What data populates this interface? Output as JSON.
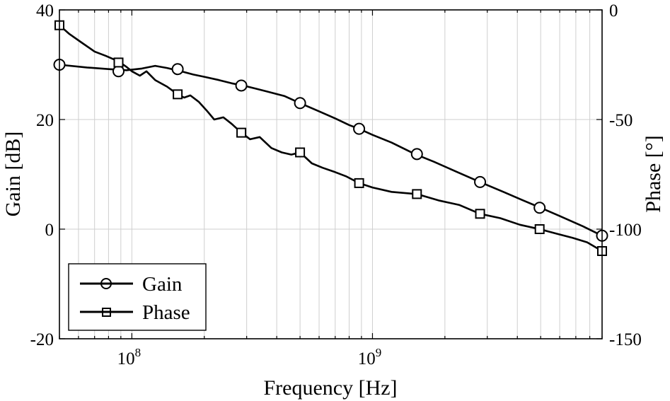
{
  "chart_data": {
    "type": "line",
    "title": "",
    "xlabel": "Frequency [Hz]",
    "ylabel_left": "Gain [dB]",
    "ylabel_right": "Phase [°]",
    "xscale": "log",
    "xlim": [
      50000000,
      9000000000
    ],
    "ylim_left": [
      -20,
      40
    ],
    "ylim_right": [
      -150,
      0
    ],
    "x_ticks": [
      {
        "value": 100000000,
        "base": "10",
        "exp": "8"
      },
      {
        "value": 1000000000,
        "base": "10",
        "exp": "9"
      }
    ],
    "y_ticks_left": [
      "-20",
      "0",
      "20",
      "40"
    ],
    "y_tick_values_left": [
      -20,
      0,
      20,
      40
    ],
    "y_ticks_right": [
      "-150",
      "-100",
      "-50",
      "0"
    ],
    "y_tick_values_right": [
      -150,
      -100,
      -50,
      0
    ],
    "grid": true,
    "legend_position": "bottom-left",
    "series": [
      {
        "name": "Gain",
        "axis": "left",
        "marker": "circle",
        "x": [
          50000000,
          65000000,
          80000000,
          95000000,
          110000000,
          125000000,
          140000000,
          160000000,
          180000000,
          200000000,
          230000000,
          260000000,
          290000000,
          330000000,
          380000000,
          430000000,
          500000000,
          600000000,
          700000000,
          800000000,
          880000000,
          1000000000,
          1200000000,
          1500000000,
          1800000000,
          2200000000,
          2800000000,
          3500000000,
          4200000000,
          5000000000,
          6000000000,
          7500000000,
          9000000000
        ],
        "values": [
          30,
          29.5,
          29.2,
          29,
          29.3,
          29.8,
          29.4,
          28.8,
          28.2,
          27.8,
          27.2,
          26.6,
          26.2,
          25.6,
          24.9,
          24.3,
          23,
          21.5,
          20.2,
          19,
          18.3,
          17.2,
          15.8,
          13.7,
          12.3,
          10.6,
          8.6,
          6.8,
          5.3,
          3.9,
          2.4,
          0.5,
          -1.2
        ],
        "markers_x": [
          50000000,
          88000000,
          155000000,
          285000000,
          500000000,
          880000000,
          1530000000,
          2800000000,
          4950000000,
          9000000000
        ],
        "markers_y": [
          30,
          28.8,
          29.2,
          26.2,
          23,
          18.3,
          13.7,
          8.6,
          3.9,
          -1.2
        ]
      },
      {
        "name": "Phase",
        "axis": "right",
        "marker": "square",
        "x": [
          50000000,
          55000000,
          62000000,
          70000000,
          78000000,
          88000000,
          95000000,
          100000000,
          108000000,
          115000000,
          125000000,
          140000000,
          155000000,
          165000000,
          175000000,
          190000000,
          205000000,
          220000000,
          240000000,
          260000000,
          285000000,
          310000000,
          340000000,
          380000000,
          420000000,
          460000000,
          500000000,
          560000000,
          620000000,
          700000000,
          780000000,
          880000000,
          1000000000,
          1200000000,
          1530000000,
          1900000000,
          2300000000,
          2800000000,
          3400000000,
          4100000000,
          4950000000,
          5800000000,
          6800000000,
          7800000000,
          9000000000
        ],
        "values": [
          -7,
          -11,
          -15,
          -19,
          -21,
          -23.5,
          -26,
          -28,
          -30,
          -28,
          -32,
          -35,
          -38.5,
          -40,
          -39,
          -42,
          -46,
          -50,
          -49,
          -52,
          -56,
          -59,
          -58,
          -63,
          -65,
          -66,
          -65,
          -70,
          -72,
          -74,
          -76,
          -79,
          -81,
          -83,
          -84,
          -87,
          -89,
          -93,
          -95,
          -98,
          -100,
          -102,
          -104,
          -106,
          -110
        ],
        "markers_x": [
          50000000,
          88000000,
          155000000,
          285000000,
          500000000,
          880000000,
          1530000000,
          2800000000,
          4950000000,
          9000000000
        ],
        "markers_y": [
          -7,
          -24,
          -38.5,
          -56,
          -65,
          -79,
          -84,
          -93,
          -100,
          -110
        ]
      }
    ]
  }
}
